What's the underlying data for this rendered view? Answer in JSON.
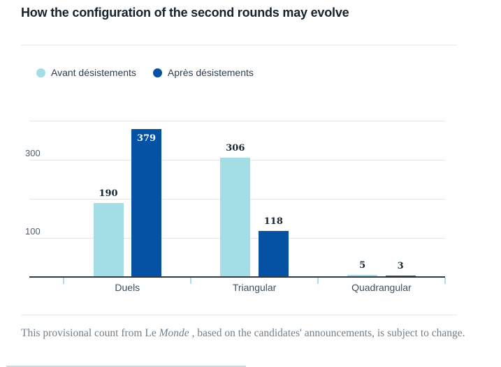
{
  "page": {
    "title": "How the configuration of the second rounds may evolve",
    "footer": {
      "text_prefix": "This provisional count from Le ",
      "text_italic": "Monde",
      "text_suffix": " , based on the candidates' announcements, is subject to change."
    }
  },
  "chart_data": {
    "type": "bar",
    "title": "How the configuration of the second rounds may evolve",
    "categories": [
      "Duels",
      "Triangular",
      "Quadrangular"
    ],
    "series": [
      {
        "name": "Avant désistements",
        "color": "#a3dde6",
        "values": [
          190,
          306,
          5
        ]
      },
      {
        "name": "Après désistements",
        "color": "#0551a4",
        "values": [
          379,
          118,
          3
        ]
      }
    ],
    "label_placement": [
      [
        "above",
        "above",
        "above"
      ],
      [
        "inside",
        "above",
        "above"
      ]
    ],
    "xlabel": "",
    "ylabel": "",
    "ylim": [
      0,
      440
    ],
    "gridlines": [
      100,
      200,
      300,
      400
    ],
    "yticks_labeled": [
      100,
      300
    ],
    "grid": true,
    "legend_position": "top-left",
    "value_labels": true
  }
}
